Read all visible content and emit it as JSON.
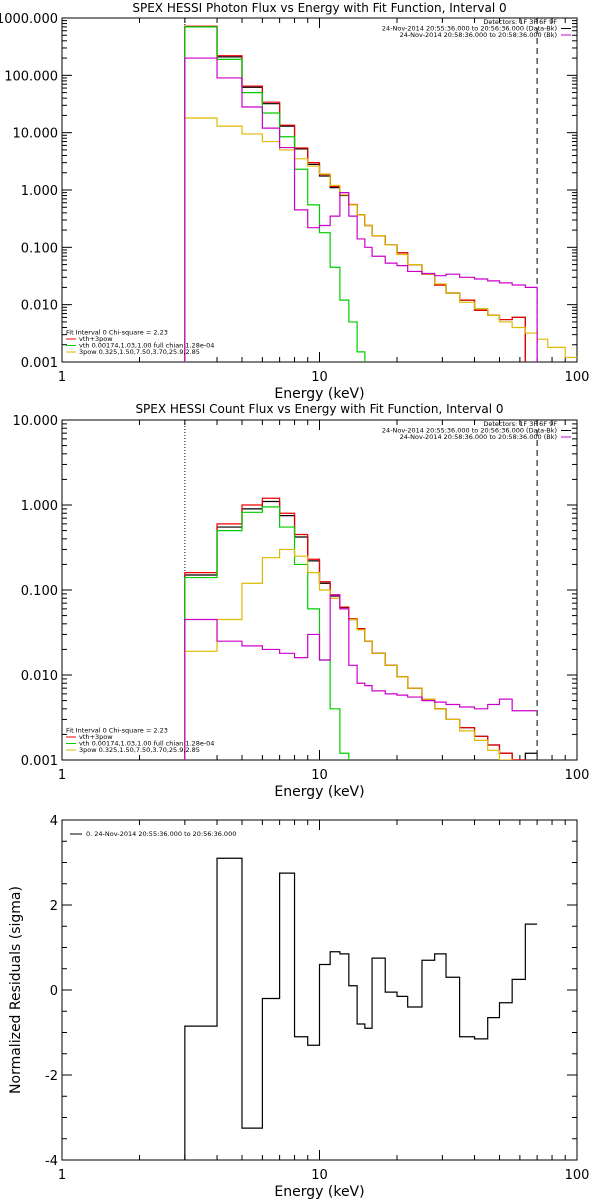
{
  "chart_data": [
    {
      "type": "line",
      "title": "SPEX HESSI Photon Flux vs Energy with Fit Function, Interval 0",
      "xlabel": "Energy (keV)",
      "ylabel": "",
      "xscale": "log",
      "yscale": "log",
      "xlim": [
        1,
        100
      ],
      "ylim": [
        0.001,
        1000
      ],
      "x_ticks": [
        "1",
        "10",
        "100"
      ],
      "y_ticks": [
        "0.001",
        "0.010",
        "0.100",
        "1.000",
        "10.000",
        "100.000",
        "1000.000"
      ],
      "energy_edges": [
        3,
        4,
        5,
        6,
        7,
        8,
        9,
        10,
        11,
        12,
        13,
        14,
        15,
        16,
        18,
        20,
        22,
        25,
        28,
        31,
        35,
        40,
        45,
        50,
        56,
        63,
        70,
        77,
        90,
        100
      ],
      "series": [
        {
          "name": "",
          "color": "#000000",
          "values": [
            700,
            210,
            62,
            32,
            13,
            5.2,
            2.8,
            1.75,
            1.1,
            0.8,
            0.55,
            0.37,
            0.24,
            0.16,
            0.11,
            0.08,
            0.05,
            0.034,
            0.022,
            0.016,
            0.012,
            0.008,
            0.0065,
            0.0055,
            0.006,
            null,
            null,
            null,
            null
          ]
        },
        {
          "name": "vth+3pow",
          "color": "#ee0000",
          "values": [
            720,
            220,
            65,
            34,
            13.5,
            5.4,
            3.0,
            1.85,
            1.15,
            0.82,
            0.56,
            0.37,
            0.24,
            0.16,
            0.11,
            0.08,
            0.05,
            0.034,
            0.022,
            0.016,
            0.012,
            0.008,
            0.0065,
            0.0055,
            0.006,
            null,
            null,
            null,
            null
          ]
        },
        {
          "name": "vth 0.00174,1.03,1.00  full chian 1.28e-04",
          "color": "#00cc00",
          "values": [
            700,
            190,
            50,
            22,
            8.5,
            2.3,
            0.55,
            0.18,
            0.045,
            0.012,
            0.005,
            0.0015,
            null,
            null,
            null,
            null,
            null,
            null,
            null,
            null,
            null,
            null,
            null,
            null,
            null,
            null,
            null,
            null,
            null
          ]
        },
        {
          "name": "3pow 0.325,1.50,7.50,3.70,25.9,2.85",
          "color": "#ddbb00",
          "values": [
            18,
            13,
            9.5,
            7,
            5,
            3.5,
            2.6,
            1.9,
            1.2,
            0.82,
            0.55,
            0.37,
            0.24,
            0.16,
            0.11,
            0.075,
            0.05,
            0.034,
            0.023,
            0.016,
            0.011,
            0.0085,
            0.0065,
            0.005,
            0.004,
            0.0032,
            0.0025,
            0.0018,
            0.0012
          ]
        },
        {
          "name": "24-Nov-2014 20:58:36.000 to 20:58:36.000 (Bk)",
          "color": "#cc00cc",
          "values": [
            200,
            90,
            28,
            12,
            5.5,
            0.45,
            0.22,
            0.24,
            0.35,
            0.9,
            0.35,
            0.14,
            0.1,
            0.07,
            0.053,
            0.048,
            0.038,
            0.035,
            0.032,
            0.034,
            0.03,
            0.028,
            0.026,
            0.024,
            0.022,
            0.02,
            null,
            null,
            null
          ]
        }
      ],
      "vlines": [
        {
          "x": 3,
          "style": "dotted"
        },
        {
          "x": 70,
          "style": "dashed"
        }
      ],
      "legend_top": {
        "lines": [
          {
            "text": "Detectors: 1F 3F 6F 9F",
            "color": "#000000"
          },
          {
            "text": "24-Nov-2014 20:55:36.000 to 20:56:36.000 (Data-Bk)",
            "color": "#000000"
          },
          {
            "text": "24-Nov-2014 20:58:36.000 to 20:58:36.000 (Bk)",
            "color": "#cc00cc"
          }
        ]
      },
      "legend_bottom": {
        "lines": [
          {
            "text": "Fit Interval 0   Chi-square = 2.23",
            "color": "#000000"
          },
          {
            "text": "vth+3pow",
            "color": "#ee0000"
          },
          {
            "text": "vth 0.00174,1.03,1.00  full chian 1.28e-04",
            "color": "#00cc00"
          },
          {
            "text": "3pow 0.325,1.50,7.50,3.70,25.9,2.85",
            "color": "#ddbb00"
          }
        ]
      }
    },
    {
      "type": "line",
      "title": "SPEX HESSI Count Flux vs Energy with Fit Function, Interval 0",
      "xlabel": "Energy (keV)",
      "ylabel": "",
      "xscale": "log",
      "yscale": "log",
      "xlim": [
        1,
        100
      ],
      "ylim": [
        0.001,
        10
      ],
      "x_ticks": [
        "1",
        "10",
        "100"
      ],
      "y_ticks": [
        "0.001",
        "0.010",
        "0.100",
        "1.000",
        "10.000"
      ],
      "energy_edges": [
        3,
        4,
        5,
        6,
        7,
        8,
        9,
        10,
        11,
        12,
        13,
        14,
        15,
        16,
        18,
        20,
        22,
        25,
        28,
        31,
        35,
        40,
        45,
        50,
        56,
        63,
        70
      ],
      "series": [
        {
          "name": "",
          "color": "#000000",
          "values": [
            0.15,
            0.55,
            0.9,
            1.1,
            0.75,
            0.42,
            0.22,
            0.12,
            0.085,
            0.062,
            0.045,
            0.035,
            0.025,
            0.018,
            0.013,
            0.0095,
            0.007,
            0.0052,
            0.004,
            0.003,
            0.0024,
            0.0019,
            0.0015,
            0.0012,
            0.001,
            0.0012
          ]
        },
        {
          "name": "vth+3pow",
          "color": "#ee0000",
          "values": [
            0.16,
            0.6,
            1.0,
            1.2,
            0.8,
            0.45,
            0.23,
            0.125,
            0.088,
            0.063,
            0.046,
            0.035,
            0.025,
            0.018,
            0.013,
            0.0095,
            0.007,
            0.0052,
            0.004,
            0.003,
            0.0024,
            0.0019,
            0.0015,
            0.0012,
            0.001,
            null
          ]
        },
        {
          "name": "vth 0.00174,1.03,1.00  full chian 1.28e-04",
          "color": "#00cc00",
          "values": [
            0.14,
            0.5,
            0.82,
            0.95,
            0.55,
            0.2,
            0.06,
            0.015,
            0.004,
            0.0012,
            null,
            null,
            null,
            null,
            null,
            null,
            null,
            null,
            null,
            null,
            null,
            null,
            null,
            null,
            null,
            null
          ]
        },
        {
          "name": "3pow 0.325,1.50,7.50,3.70,25.9,2.85",
          "color": "#ddbb00",
          "values": [
            0.019,
            0.045,
            0.12,
            0.24,
            0.3,
            0.25,
            0.16,
            0.1,
            0.08,
            0.06,
            0.045,
            0.034,
            0.025,
            0.018,
            0.013,
            0.0095,
            0.007,
            0.0052,
            0.004,
            0.003,
            0.0022,
            0.0017,
            0.0013,
            0.001,
            0.0009,
            0.0008
          ]
        },
        {
          "name": "24-Nov-2014 20:58:36.000 to 20:58:36.000 (Bk)",
          "color": "#cc00cc",
          "values": [
            0.045,
            0.025,
            0.022,
            0.02,
            0.018,
            0.016,
            0.03,
            0.015,
            0.087,
            0.06,
            0.013,
            0.008,
            0.0075,
            0.0065,
            0.006,
            0.0058,
            0.0055,
            0.005,
            0.0048,
            0.0045,
            0.0042,
            0.004,
            0.0045,
            0.0052,
            0.0038,
            0.0038
          ]
        }
      ],
      "vlines": [
        {
          "x": 3,
          "style": "dotted"
        },
        {
          "x": 70,
          "style": "dashed"
        }
      ],
      "legend_top": {
        "lines": [
          {
            "text": "Detectors: 1F 3F 6F 9F",
            "color": "#000000"
          },
          {
            "text": "24-Nov-2014 20:55:36.000 to 20:56:36.000 (Data-Bk)",
            "color": "#000000"
          },
          {
            "text": "24-Nov-2014 20:58:36.000 to 20:58:36.000 (Bk)",
            "color": "#cc00cc"
          }
        ]
      },
      "legend_bottom": {
        "lines": [
          {
            "text": "Fit Interval 0   Chi-square = 2.23",
            "color": "#000000"
          },
          {
            "text": "vth+3pow",
            "color": "#ee0000"
          },
          {
            "text": "vth 0.00174,1.03,1.00  full chian 1.28e-04",
            "color": "#00cc00"
          },
          {
            "text": "3pow 0.325,1.50,7.50,3.70,25.9,2.85",
            "color": "#ddbb00"
          }
        ]
      }
    },
    {
      "type": "line",
      "title": "",
      "xlabel": "Energy (keV)",
      "ylabel": "Normalized Residuals (sigma)",
      "xscale": "log",
      "yscale": "linear",
      "xlim": [
        1,
        100
      ],
      "ylim": [
        -4,
        4
      ],
      "x_ticks": [
        "1",
        "10",
        "100"
      ],
      "y_ticks": [
        "-4",
        "-2",
        "0",
        "2",
        "4"
      ],
      "energy_edges": [
        3,
        4,
        5,
        6,
        7,
        8,
        9,
        10,
        11,
        12,
        13,
        14,
        15,
        16,
        18,
        20,
        22,
        25,
        28,
        31,
        35,
        40,
        45,
        50,
        56,
        63,
        70
      ],
      "series": [
        {
          "name": "0. 24-Nov-2014 20:55:36.000 to 20:56:36.000",
          "color": "#000000",
          "values": [
            -0.85,
            3.1,
            -3.25,
            -0.2,
            2.75,
            -1.1,
            -1.3,
            0.6,
            0.9,
            0.85,
            0.1,
            -0.8,
            -0.9,
            0.75,
            -0.05,
            -0.15,
            -0.4,
            0.7,
            0.85,
            0.3,
            -1.1,
            -1.15,
            -0.65,
            -0.3,
            0.25,
            1.55
          ]
        }
      ],
      "vlines": [],
      "legend_top": {
        "lines": [
          {
            "text": "0. 24-Nov-2014 20:55:36.000 to 20:56:36.000",
            "color": "#000000"
          }
        ]
      },
      "legend_bottom": {
        "lines": []
      }
    }
  ]
}
